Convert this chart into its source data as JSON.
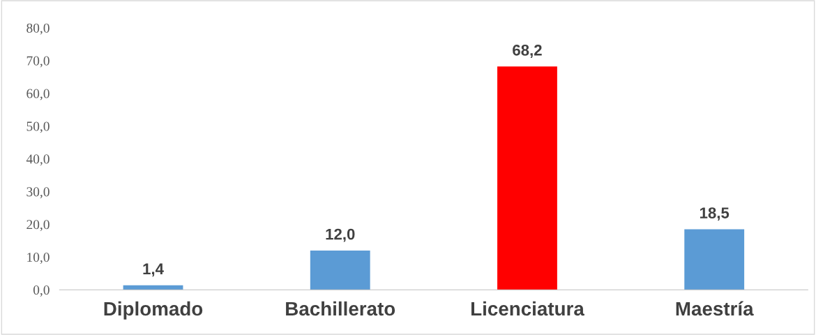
{
  "chart_data": {
    "type": "bar",
    "categories": [
      "Diplomado",
      "Bachillerato",
      "Licenciatura",
      "Maestría"
    ],
    "values": [
      1.4,
      12.0,
      68.2,
      18.5
    ],
    "colors": [
      "#5b9bd5",
      "#5b9bd5",
      "#ff0000",
      "#5b9bd5"
    ],
    "value_labels": [
      "1,4",
      "12,0",
      "68,2",
      "18,5"
    ],
    "ylim": [
      0,
      80
    ],
    "yticks": [
      {
        "value": 0,
        "label": "0,0"
      },
      {
        "value": 10,
        "label": "10,0"
      },
      {
        "value": 20,
        "label": "20,0"
      },
      {
        "value": 30,
        "label": "30,0"
      },
      {
        "value": 40,
        "label": "40,0"
      },
      {
        "value": 50,
        "label": "50,0"
      },
      {
        "value": 60,
        "label": "60,0"
      },
      {
        "value": 70,
        "label": "70,0"
      },
      {
        "value": 80,
        "label": "80,0"
      }
    ],
    "grid": false
  }
}
